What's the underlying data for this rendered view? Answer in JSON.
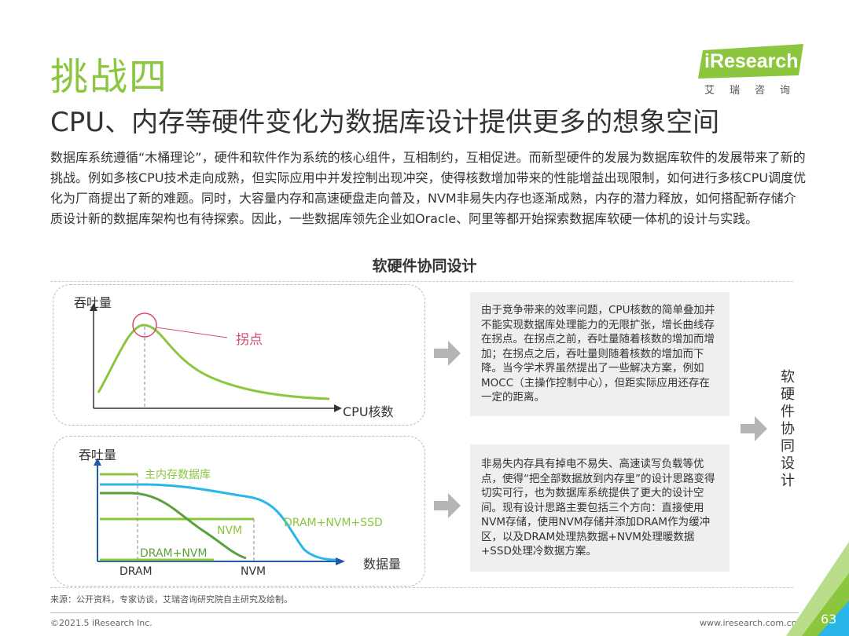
{
  "header": {
    "title": "挑战四",
    "subtitle": "CPU、内存等硬件变化为数据库设计提供更多的想象空间"
  },
  "logo": {
    "brand": "iResearch",
    "brand_cn": "艾瑞咨询"
  },
  "intro": "数据库系统遵循“木桶理论”，硬件和软件作为系统的核心组件，互相制约，互相促进。而新型硬件的发展为数据库软件的发展带来了新的挑战。例如多核CPU技术走向成熟，但实际应用中并发控制出现冲突，使得核数增加带来的性能增益出现限制，如何进行多核CPU调度优化为厂商提出了新的难题。同时，大容量内存和高速硬盘走向普及，NVM非易失内存也逐渐成熟，内存的潜力释放，如何搭配新存储介质设计新的数据库架构也有待探索。因此，一些数据库领先企业如Oracle、阿里等都开始探索数据库软硬一体机的设计与实践。",
  "section_title": "软硬件协同设计",
  "diagram1": {
    "y_label": "吞吐量",
    "x_label": "CPU核数",
    "annotation": "拐点",
    "description": "由于竞争带来的效率问题，CPU核数的简单叠加并不能实现数据库处理能力的无限扩张，增长曲线存在拐点。在拐点之前，吞吐量随着核数的增加而增加；在拐点之后，吞吐量则随着核数的增加而下降。当今学术界虽然提出了一些解决方案，例如MOCC（主操作控制中心），但距实际应用还存在一定的距离。"
  },
  "diagram2": {
    "y_label": "吞吐量",
    "x_label": "数据量",
    "tick_labels": [
      "DRAM",
      "NVM"
    ],
    "series": [
      "主内存数据库",
      "NVM",
      "DRAM+NVM",
      "DRAM+NVM+SSD"
    ],
    "description": "非易失内存具有掉电不易失、高速读写负载等优点，使得“把全部数据放到内存里”的设计思路变得切实可行，也为数据库系统提供了更大的设计空间。现有设计思路主要包括三个方向：直接使用NVM存储，使用NVM存储并添加DRAM作为缓冲区，以及DRAM处理热数据+NVM处理暖数据+SSD处理冷数据方案。"
  },
  "conclusion_vertical": [
    "软",
    "硬",
    "件",
    "协",
    "同",
    "设",
    "计"
  ],
  "colors": {
    "green": "#8cc63f",
    "dark_green": "#5aa03c",
    "cyan": "#29b6e8",
    "blue_arrow": "#1e5aa8",
    "pink": "#d84a6b"
  },
  "footer": {
    "source": "来源：公开资料，专家访谈，艾瑞咨询研究院自主研究及绘制。",
    "copyright": "©2021.5 iResearch Inc.",
    "website": "www.iresearch.com.cn",
    "page_number": "63"
  }
}
